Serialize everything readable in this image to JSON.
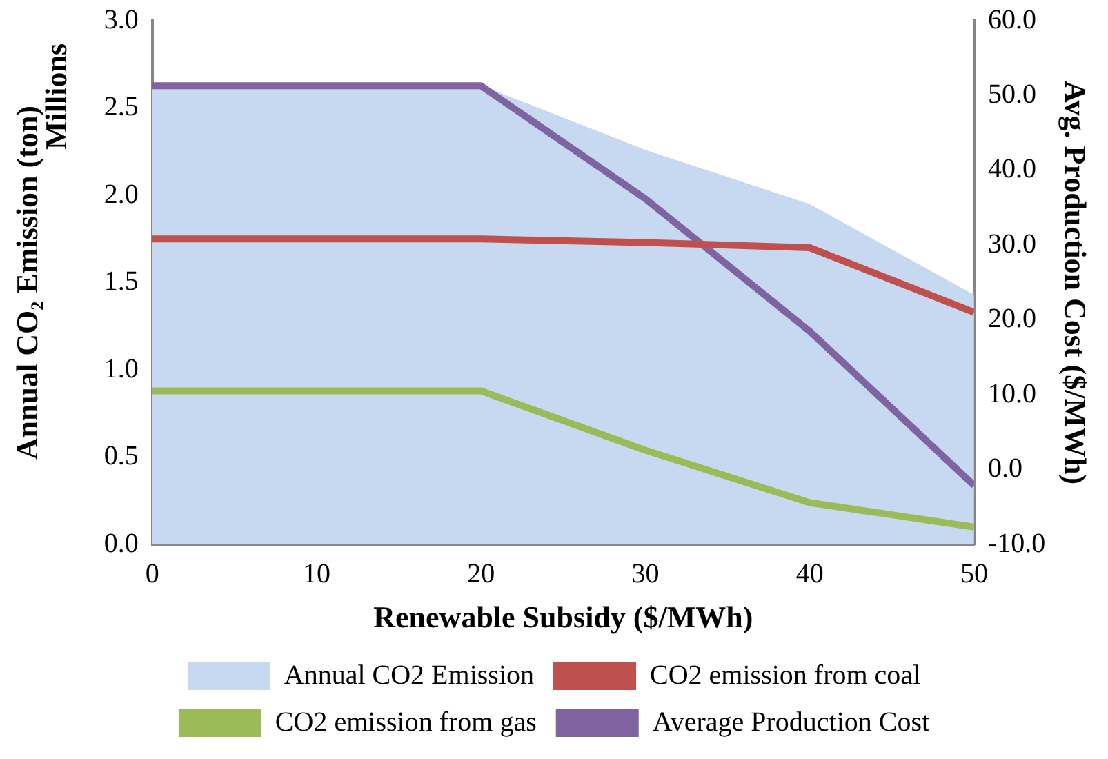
{
  "chart_data": {
    "type": "line",
    "xlabel": "Renewable Subsidy ($/MWh)",
    "ylabel": "Annual CO₂ Emission (ton)",
    "y2label": "Avg. Production Cost ($/MWh)",
    "annotations": [
      "Millions"
    ],
    "x": [
      0,
      10,
      20,
      30,
      40,
      50
    ],
    "series": [
      {
        "name": "Annual CO2 Emission",
        "type": "area",
        "color": "#c6d9f0",
        "values": [
          2.63,
          2.63,
          2.63,
          2.26,
          1.95,
          1.43
        ]
      },
      {
        "name": "CO2 emission from coal",
        "color": "#c0504d",
        "values": [
          1.75,
          1.75,
          1.75,
          1.73,
          1.7,
          1.33
        ]
      },
      {
        "name": "CO2 emission from gas",
        "color": "#9bbb59",
        "values": [
          0.88,
          0.88,
          0.88,
          0.54,
          0.24,
          0.1
        ]
      },
      {
        "name": "Average Production Cost",
        "color": "#8064a2",
        "axis": "y2",
        "values": [
          51.3,
          51.3,
          51.3,
          36.2,
          18.5,
          -2.1
        ]
      }
    ],
    "xlim": [
      0,
      50
    ],
    "xticks": [
      0,
      10,
      20,
      30,
      40,
      50
    ],
    "ylim": [
      0,
      3
    ],
    "yticks": [
      {
        "value": 0,
        "label": "0.0"
      },
      {
        "value": 0.5,
        "label": "0.5"
      },
      {
        "value": 1,
        "label": "1.0"
      },
      {
        "value": 1.5,
        "label": "1.5"
      },
      {
        "value": 2,
        "label": "2.0"
      },
      {
        "value": 2.5,
        "label": "2.5"
      },
      {
        "value": 3,
        "label": "3.0"
      }
    ],
    "y2lim": [
      -10,
      60
    ],
    "y2ticks": [
      {
        "value": -10,
        "label": "-10.0"
      },
      {
        "value": 0,
        "label": "0.0"
      },
      {
        "value": 10,
        "label": "10.0"
      },
      {
        "value": 20,
        "label": "20.0"
      },
      {
        "value": 30,
        "label": "30.0"
      },
      {
        "value": 40,
        "label": "40.0"
      },
      {
        "value": 50,
        "label": "50.0"
      },
      {
        "value": 60,
        "label": "60.0"
      }
    ],
    "grid": false,
    "legend": "bottom",
    "marker": "none",
    "line_style": "solid"
  }
}
